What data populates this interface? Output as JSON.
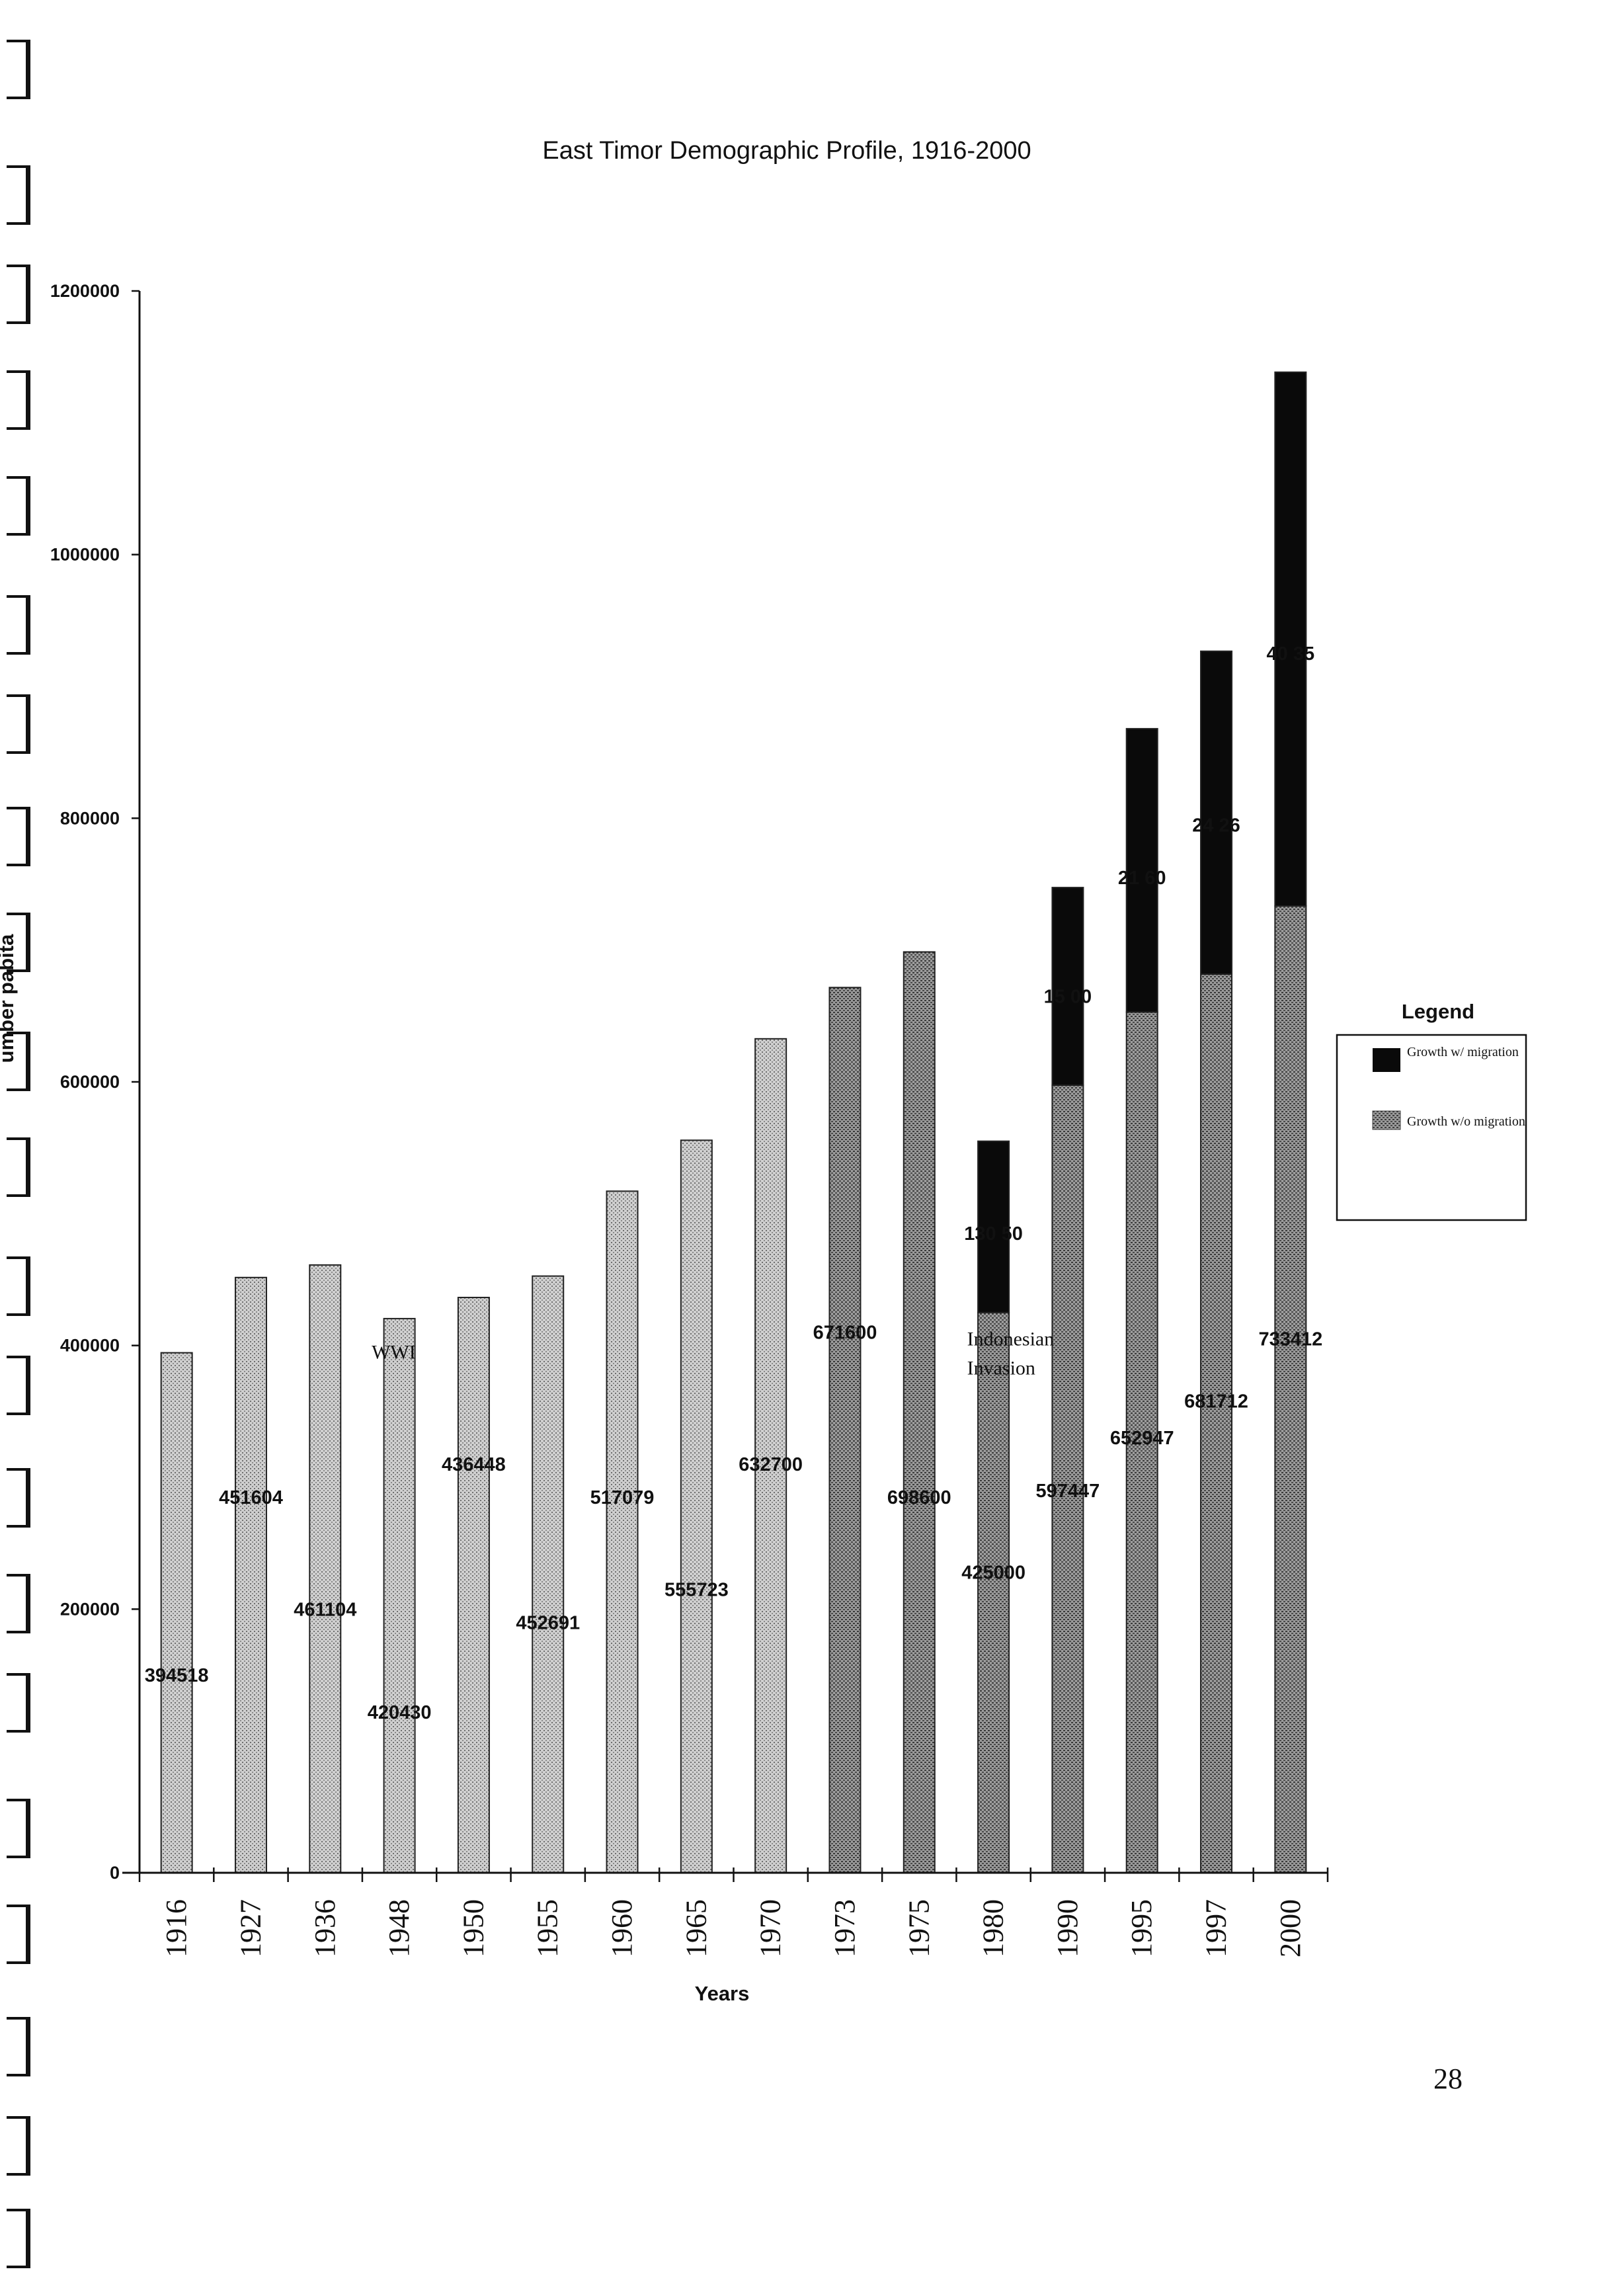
{
  "page_number": "28",
  "chart_data": {
    "type": "bar",
    "stacked": true,
    "title": "East Timor Demographic Profile, 1916-2000",
    "xlabel": "Years",
    "ylabel": "umber  pabita",
    "ylim": [
      0,
      1200000
    ],
    "yticks": [
      "0",
      "200000",
      "400000",
      "600000",
      "800000",
      "1000000",
      "1200000"
    ],
    "categories": [
      "1916",
      "1927",
      "1936",
      "1948",
      "1950",
      "1955",
      "1960",
      "1965",
      "1970",
      "1973",
      "1975",
      "1980",
      "1990",
      "1995",
      "1997",
      "2000"
    ],
    "series": [
      {
        "name": "Growth w/o migration",
        "color": "#8a8a8a",
        "values": [
          394518,
          451604,
          461104,
          420430,
          436448,
          452691,
          517079,
          555723,
          632700,
          671600,
          698600,
          425000,
          597447,
          652947,
          681712,
          733412
        ],
        "labels": [
          "394518",
          "451604",
          "461104",
          "420430",
          "436448",
          "452691",
          "517079",
          "555723",
          "632700",
          "671600",
          "698600",
          "425000",
          "597447",
          "652947",
          "681712",
          "733412"
        ],
        "label_values": [
          150000,
          285000,
          200000,
          122000,
          310000,
          190000,
          285000,
          215000,
          310000,
          410000,
          285000,
          228000,
          290000,
          330000,
          358000,
          405000
        ]
      },
      {
        "name": "Growth w/ migration",
        "color": "#0a0a0a",
        "values": [
          0,
          0,
          0,
          0,
          0,
          0,
          0,
          0,
          0,
          0,
          0,
          130000,
          150000,
          215000,
          245000,
          405000
        ],
        "labels": [
          "",
          "",
          "",
          "",
          "",
          "",
          "",
          "",
          "",
          "",
          "",
          "130 50",
          "15  00",
          "21  60",
          "24  26",
          "40  35"
        ],
        "label_values": [
          0,
          0,
          0,
          0,
          0,
          0,
          0,
          0,
          0,
          0,
          0,
          485000,
          665000,
          755000,
          795000,
          925000
        ]
      }
    ],
    "annotations": [
      {
        "category": "1948",
        "text": "WWI",
        "value": 395000
      },
      {
        "category": "1980",
        "text": "Indonesian",
        "value": 405000
      },
      {
        "category": "1980",
        "text": "Invasion",
        "value": 383000
      }
    ],
    "legend": {
      "title": "Legend",
      "position": "right",
      "items": [
        "Growth w/ migration",
        "Growth w/o migration"
      ]
    }
  }
}
